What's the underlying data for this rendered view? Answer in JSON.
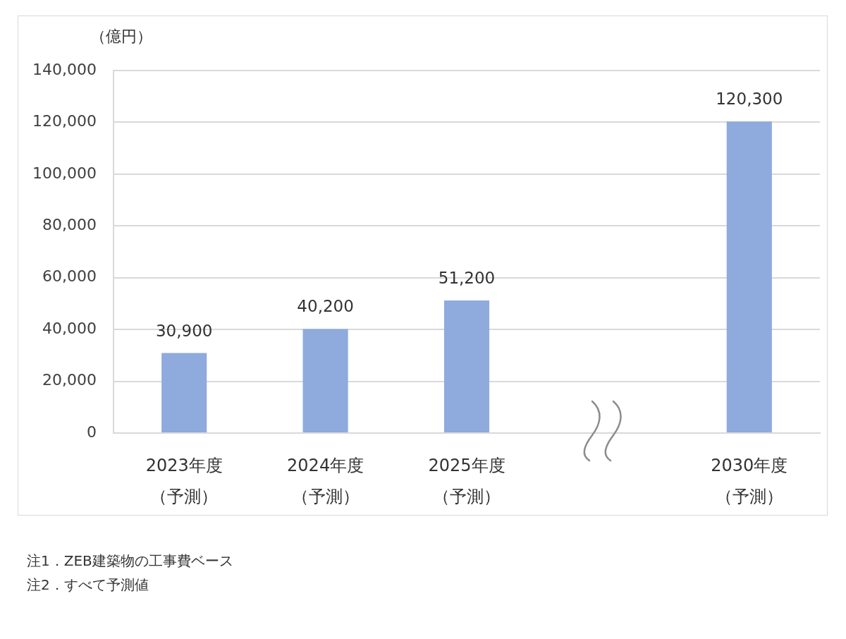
{
  "chart_data": {
    "type": "bar",
    "ylabel": "（億円）",
    "categories": [
      "2023年度（予測）",
      "2024年度（予測）",
      "2025年度（予測）",
      null,
      "2030年度（予測）"
    ],
    "values": [
      30900,
      40200,
      51200,
      null,
      120300
    ],
    "value_labels": [
      "30,900",
      "40,200",
      "51,200",
      null,
      "120,300"
    ],
    "color": "#8faadc",
    "ylim": [
      0,
      140000
    ],
    "yticks": [
      0,
      {
        "value": 20000,
        "label": "20,000"
      },
      {
        "value": 40000,
        "label": "40,000"
      },
      {
        "value": 60000,
        "label": "60,000"
      },
      {
        "value": 80000,
        "label": "80,000"
      },
      {
        "value": 100000,
        "label": "100,000"
      },
      {
        "value": 120000,
        "label": "120,000"
      },
      {
        "value": 140000,
        "label": "140,000"
      }
    ],
    "grid": "y",
    "annotations": [
      "注1．ZEB建築物の工事費ベース",
      "注2．すべて予測値"
    ]
  }
}
